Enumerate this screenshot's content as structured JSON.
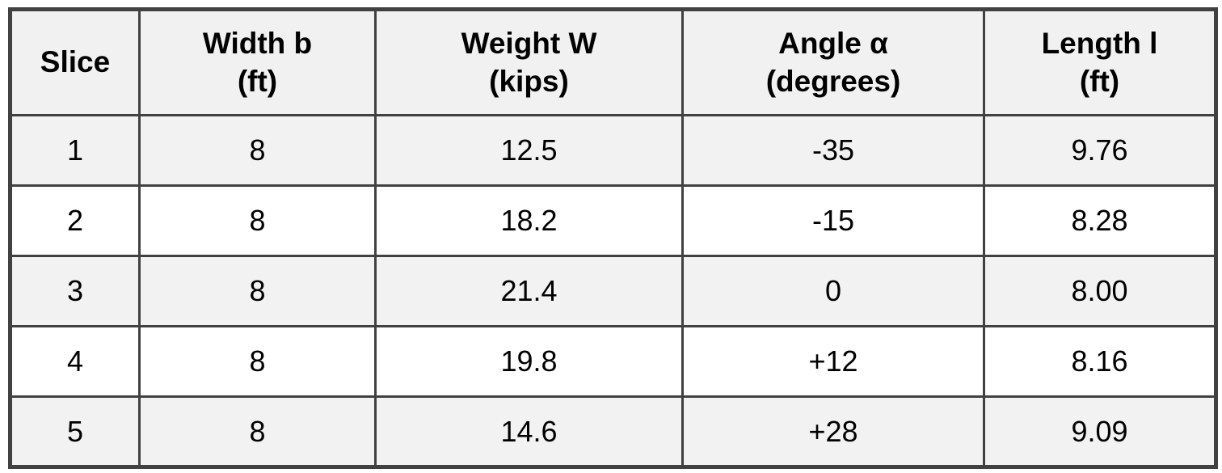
{
  "colors": {
    "border": "#414141",
    "header_background": "#f1f1f1",
    "stripe_row_background": "#f2f2f2",
    "plain_row_background": "#ffffff",
    "text": "#000000",
    "page_background": "#ffffff"
  },
  "table": {
    "headers": [
      {
        "title": "Slice",
        "unit": ""
      },
      {
        "title": "Width b",
        "unit": "(ft)"
      },
      {
        "title": "Weight W",
        "unit": "(kips)"
      },
      {
        "title": "Angle α",
        "unit": "(degrees)"
      },
      {
        "title": "Length l",
        "unit": "(ft)"
      }
    ],
    "rows": [
      {
        "slice": "1",
        "width_b": "8",
        "weight_w": "12.5",
        "angle": "-35",
        "length_l": "9.76"
      },
      {
        "slice": "2",
        "width_b": "8",
        "weight_w": "18.2",
        "angle": "-15",
        "length_l": "8.28"
      },
      {
        "slice": "3",
        "width_b": "8",
        "weight_w": "21.4",
        "angle": "0",
        "length_l": "8.00"
      },
      {
        "slice": "4",
        "width_b": "8",
        "weight_w": "19.8",
        "angle": "+12",
        "length_l": "8.16"
      },
      {
        "slice": "5",
        "width_b": "8",
        "weight_w": "14.6",
        "angle": "+28",
        "length_l": "9.09"
      }
    ]
  },
  "chart_data": {
    "type": "table",
    "columns": [
      "Slice",
      "Width b (ft)",
      "Weight W (kips)",
      "Angle α (degrees)",
      "Length l (ft)"
    ],
    "rows": [
      [
        "1",
        "8",
        "12.5",
        "-35",
        "9.76"
      ],
      [
        "2",
        "8",
        "18.2",
        "-15",
        "8.28"
      ],
      [
        "3",
        "8",
        "21.4",
        "0",
        "8.00"
      ],
      [
        "4",
        "8",
        "19.8",
        "+12",
        "8.16"
      ],
      [
        "5",
        "8",
        "14.6",
        "+28",
        "9.09"
      ]
    ]
  }
}
